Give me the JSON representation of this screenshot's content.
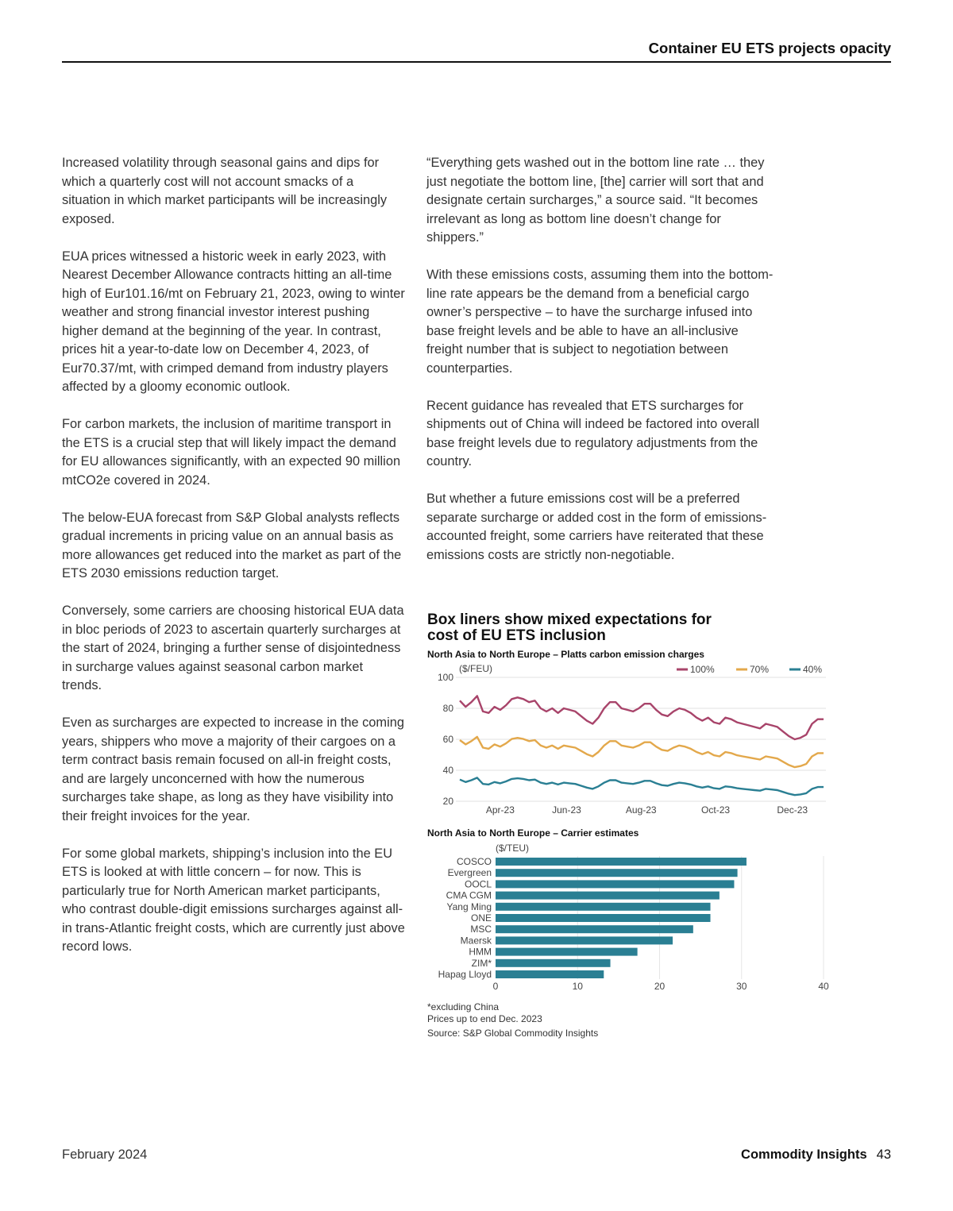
{
  "header": {
    "title": "Container EU ETS projects opacity"
  },
  "left_column": {
    "paragraphs": [
      "Increased volatility through seasonal gains and dips for which a quarterly cost will not account smacks of a situation in which market participants will be increasingly exposed.",
      "EUA prices witnessed a historic week in early 2023, with Nearest December Allowance contracts hitting an all-time high of Eur101.16/mt on February 21, 2023, owing to winter weather and strong financial investor interest pushing higher demand at the beginning of the year. In contrast, prices hit a year-to-date low on December 4, 2023, of Eur70.37/mt, with crimped demand from industry players affected by a gloomy economic outlook.",
      "For carbon markets, the inclusion of maritime transport in the ETS is a crucial step that will likely impact the demand for EU allowances significantly, with an expected 90 million mtCO2e covered in 2024.",
      "The below-EUA forecast from S&P Global analysts reflects gradual increments in pricing value on an annual basis as more allowances get reduced into the market as part of the ETS 2030 emissions reduction target.",
      "Conversely, some carriers are choosing historical EUA data in bloc periods of 2023 to ascertain quarterly surcharges at the start of 2024, bringing a further sense of disjointedness in surcharge values against seasonal carbon market trends.",
      "Even as surcharges are expected to increase in the coming years, shippers who move a majority of their cargoes on a term contract basis remain focused on all-in freight costs, and are largely unconcerned with how the numerous surcharges take shape, as long as they have visibility into their freight invoices for the year.",
      "For some global markets, shipping’s inclusion into the EU ETS is looked at with little concern – for now. This is particularly true for North American market participants, who contrast double-digit emissions surcharges against all-in trans-Atlantic freight costs, which are currently just above record lows."
    ]
  },
  "right_column": {
    "paragraphs": [
      "“Everything gets washed out in the bottom line rate … they just negotiate the bottom line, [the] carrier will sort that and designate certain surcharges,” a source said. “It becomes irrelevant as long as bottom line doesn’t change for shippers.”",
      "With these emissions costs, assuming them into the bottom-line rate appears be the demand from a beneficial cargo owner’s perspective – to have the surcharge infused into base freight levels and be able to have an all-inclusive freight number that is subject to negotiation between counterparties.",
      "Recent guidance has revealed that ETS surcharges for shipments out of China will indeed be factored into overall base freight levels due to regulatory adjustments from the country.",
      "But whether a future emissions cost will be a preferred separate surcharge or added cost in the form of emissions-accounted freight, some carriers have reiterated that these emissions costs are strictly non-negotiable."
    ]
  },
  "figure": {
    "title": "Box liners show mixed expectations for cost of EU ETS inclusion",
    "notes": [
      "*excluding China",
      "Prices up to end Dec. 2023",
      "Source: S&P Global Commodity Insights"
    ]
  },
  "chart_data": [
    {
      "type": "line",
      "title": "North Asia to North Europe – Platts carbon emission charges",
      "ylabel": "($/FEU)",
      "ylim": [
        20,
        100
      ],
      "yticks": [
        20,
        40,
        60,
        80,
        100
      ],
      "xticks": [
        {
          "label": "Apr-23",
          "x": 7
        },
        {
          "label": "Jun-23",
          "x": 18.5
        },
        {
          "label": "Aug-23",
          "x": 31.4
        },
        {
          "label": "Oct-23",
          "x": 44.3
        },
        {
          "label": "Dec-23",
          "x": 57.6
        }
      ],
      "xlim": [
        0,
        63
      ],
      "grid": true,
      "legend": "top-right",
      "series": [
        {
          "name": "100%",
          "color": "#a8446a",
          "values": [
            85,
            81,
            84,
            88,
            78,
            77,
            81,
            79,
            82,
            86,
            87,
            86,
            84,
            85,
            80,
            78,
            80,
            77,
            80,
            79,
            78,
            75,
            72,
            70,
            74,
            80,
            84,
            84,
            80,
            79,
            78,
            80,
            83,
            83,
            79,
            76,
            75,
            78,
            80,
            79,
            77,
            74,
            72,
            74,
            71,
            70,
            74,
            73,
            71,
            70,
            69,
            68,
            67,
            70,
            69,
            68,
            65,
            62,
            60,
            61,
            63,
            70,
            73,
            73
          ]
        },
        {
          "name": "70%",
          "color": "#e3a84b",
          "values": [
            59.5,
            56.7,
            58.8,
            61.6,
            54.6,
            53.9,
            56.7,
            55.3,
            57.4,
            60.2,
            60.9,
            60.2,
            58.8,
            59.5,
            56,
            54.6,
            56,
            53.9,
            56,
            55.3,
            54.6,
            52.5,
            50.4,
            49,
            51.8,
            56,
            58.8,
            58.8,
            56,
            55.3,
            54.6,
            56,
            58.1,
            58.1,
            55.3,
            53.2,
            52.5,
            54.6,
            56,
            55.3,
            53.9,
            51.8,
            50.4,
            51.8,
            49.7,
            49,
            51.8,
            51.1,
            49.7,
            49,
            48.3,
            47.6,
            46.9,
            49,
            48.3,
            47.6,
            45.5,
            43.4,
            42,
            42.7,
            44.1,
            49,
            51.1,
            51.1
          ]
        },
        {
          "name": "40%",
          "color": "#2a7f93",
          "values": [
            34,
            32.4,
            33.6,
            35.2,
            31.2,
            30.8,
            32.4,
            31.6,
            32.8,
            34.4,
            34.8,
            34.4,
            33.6,
            34,
            32,
            31.2,
            32,
            30.8,
            32,
            31.6,
            31.2,
            30,
            28.8,
            28,
            29.6,
            32,
            33.6,
            33.6,
            32,
            31.6,
            31.2,
            32,
            33.2,
            33.2,
            31.6,
            30.4,
            30,
            31.2,
            32,
            31.6,
            30.8,
            29.6,
            28.8,
            29.6,
            28.4,
            28,
            29.6,
            29.2,
            28.4,
            28,
            27.6,
            27.2,
            26.8,
            28,
            27.6,
            27.2,
            26,
            24.8,
            24,
            24.4,
            25.2,
            28,
            29.2,
            29.2
          ]
        }
      ]
    },
    {
      "type": "bar",
      "orientation": "horizontal",
      "title": "North Asia to North Europe – Carrier estimates",
      "xlabel": "($/TEU)",
      "xlim": [
        0,
        40
      ],
      "xticks": [
        0,
        10,
        20,
        30,
        40
      ],
      "color": "#2a7f93",
      "categories": [
        "COSCO",
        "Evergreen",
        "OOCL",
        "CMA CGM",
        "Yang Ming",
        "ONE",
        "MSC",
        "Maersk",
        "HMM",
        "ZIM*",
        "Hapag Lloyd"
      ],
      "values": [
        30.6,
        29.5,
        29.1,
        27.3,
        26.2,
        26.2,
        24.1,
        21.6,
        17.3,
        14.0,
        13.2
      ]
    }
  ],
  "footer": {
    "date": "February 2024",
    "brand": "Commodity Insights",
    "page": "43"
  }
}
